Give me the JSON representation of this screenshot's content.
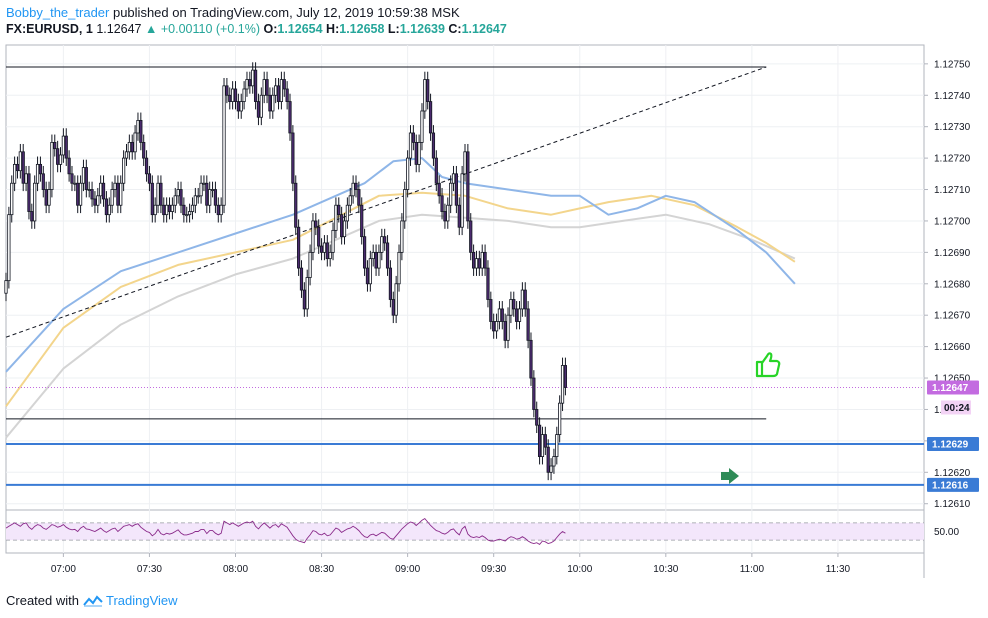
{
  "header": {
    "user": "Bobby_the_trader",
    "published": " published on TradingView.com, July 12, 2019 10:59:38 MSK",
    "symbol": "FX:EURUSD, 1",
    "last": "1.12647",
    "change_arrow": "▲",
    "change": "+0.00110 (+0.1%)",
    "o_label": "O:",
    "o_value": "1.12654",
    "h_label": "H:",
    "h_value": "1.12658",
    "l_label": "L:",
    "l_value": "1.12639",
    "c_label": "C:",
    "c_value": "1.12647"
  },
  "footer": {
    "created_with": "Created with",
    "brand": "TradingView",
    "brand_icon": "tradingview-logo-icon"
  },
  "colors": {
    "sma_blue": "#8fb6e8",
    "sma_yellow": "#f3d58c",
    "sma_gray": "#d4d4d4",
    "level_blue": "#3a7bd5",
    "price_line": "#c36be0",
    "rsi_line": "#8a2a8a",
    "rsi_fill": "#f3e6fb",
    "thumb": "#27d427",
    "arrow": "#2e8b57"
  },
  "chart_data": {
    "type": "candlestick",
    "interval": "1 minute",
    "y_range": [
      1.12608,
      1.12756
    ],
    "y_ticks": [
      "1.12750",
      "1.12740",
      "1.12730",
      "1.12720",
      "1.12710",
      "1.12700",
      "1.12690",
      "1.12680",
      "1.12670",
      "1.12660",
      "1.12650",
      "1.12640",
      "1.12630",
      "1.12620",
      "1.12610"
    ],
    "x_ticks": [
      "07:00",
      "07:30",
      "08:00",
      "08:30",
      "09:00",
      "09:30",
      "10:00",
      "10:30",
      "11:00",
      "11:30"
    ],
    "x_range_minutes": [
      400,
      720
    ],
    "price_tags": {
      "current": "1.12647",
      "countdown": "00:24",
      "level_1": "1.12629",
      "level_2": "1.12616"
    },
    "levels": [
      1.12629,
      1.12616
    ],
    "horizontal_lines": [
      1.12749,
      1.12637
    ],
    "trend_line": {
      "start": [
        400,
        1.12663
      ],
      "end": [
        665,
        1.12749
      ]
    },
    "closes": [
      1.12681,
      1.12702,
      1.12712,
      1.12718,
      1.12716,
      1.12722,
      1.12712,
      1.12715,
      1.12703,
      1.127,
      1.12712,
      1.12718,
      1.12715,
      1.1271,
      1.12705,
      1.1271,
      1.12725,
      1.12723,
      1.12718,
      1.12721,
      1.12727,
      1.1272,
      1.12715,
      1.12712,
      1.12712,
      1.12705,
      1.12712,
      1.12717,
      1.1271,
      1.1271,
      1.12707,
      1.12705,
      1.12708,
      1.12712,
      1.12707,
      1.12702,
      1.12705,
      1.1271,
      1.12712,
      1.12705,
      1.12712,
      1.1272,
      1.12722,
      1.12725,
      1.12722,
      1.12728,
      1.12732,
      1.12725,
      1.1272,
      1.12715,
      1.12712,
      1.12702,
      1.12705,
      1.12712,
      1.12705,
      1.12702,
      1.12705,
      1.12703,
      1.12705,
      1.12708,
      1.1271,
      1.12705,
      1.12702,
      1.12702,
      1.12703,
      1.12705,
      1.12708,
      1.12708,
      1.12712,
      1.12712,
      1.12705,
      1.1271,
      1.1271,
      1.12705,
      1.12702,
      1.12705,
      1.12743,
      1.1274,
      1.12738,
      1.12742,
      1.12738,
      1.12735,
      1.12738,
      1.12742,
      1.12745,
      1.12743,
      1.12748,
      1.12738,
      1.12733,
      1.1274,
      1.12745,
      1.1274,
      1.12735,
      1.1274,
      1.12743,
      1.12738,
      1.12745,
      1.12742,
      1.12738,
      1.12728,
      1.12712,
      1.12698,
      1.12685,
      1.12678,
      1.12672,
      1.12682,
      1.1269,
      1.127,
      1.12698,
      1.12692,
      1.1269,
      1.12693,
      1.12688,
      1.1269,
      1.12697,
      1.12705,
      1.12702,
      1.12695,
      1.127,
      1.12705,
      1.12708,
      1.12712,
      1.1271,
      1.12705,
      1.12695,
      1.12685,
      1.1268,
      1.12688,
      1.1269,
      1.12685,
      1.1269,
      1.12695,
      1.12693,
      1.12685,
      1.12675,
      1.1267,
      1.1268,
      1.1269,
      1.127,
      1.1271,
      1.1272,
      1.12728,
      1.12725,
      1.12718,
      1.12725,
      1.12735,
      1.12745,
      1.12738,
      1.12728,
      1.1272,
      1.12712,
      1.12708,
      1.12703,
      1.127,
      1.12705,
      1.12712,
      1.12715,
      1.12705,
      1.12698,
      1.12715,
      1.12722,
      1.127,
      1.1269,
      1.12685,
      1.12688,
      1.12685,
      1.1269,
      1.12685,
      1.12675,
      1.12668,
      1.12665,
      1.12668,
      1.12672,
      1.12668,
      1.12662,
      1.1267,
      1.12675,
      1.12672,
      1.12668,
      1.12672,
      1.12678,
      1.12672,
      1.12662,
      1.1265,
      1.1264,
      1.12635,
      1.12625,
      1.12632,
      1.12628,
      1.1262,
      1.12622,
      1.12625,
      1.12632,
      1.12642,
      1.12654,
      1.12647
    ],
    "sma_blue": [
      [
        400,
        1.12652
      ],
      [
        420,
        1.12672
      ],
      [
        440,
        1.12684
      ],
      [
        460,
        1.1269
      ],
      [
        480,
        1.12696
      ],
      [
        500,
        1.12702
      ],
      [
        510,
        1.12706
      ],
      [
        525,
        1.12712
      ],
      [
        535,
        1.12719
      ],
      [
        545,
        1.1272
      ],
      [
        552,
        1.12714
      ],
      [
        560,
        1.12712
      ],
      [
        575,
        1.1271
      ],
      [
        590,
        1.12708
      ],
      [
        600,
        1.12708
      ],
      [
        610,
        1.12702
      ],
      [
        620,
        1.12704
      ],
      [
        630,
        1.12708
      ],
      [
        640,
        1.12706
      ],
      [
        655,
        1.12697
      ],
      [
        665,
        1.1269
      ],
      [
        675,
        1.1268
      ]
    ],
    "sma_yellow": [
      [
        400,
        1.12641
      ],
      [
        420,
        1.12666
      ],
      [
        440,
        1.12679
      ],
      [
        460,
        1.12686
      ],
      [
        480,
        1.1269
      ],
      [
        500,
        1.12694
      ],
      [
        515,
        1.12701
      ],
      [
        530,
        1.12708
      ],
      [
        545,
        1.12709
      ],
      [
        560,
        1.12708
      ],
      [
        575,
        1.12704
      ],
      [
        590,
        1.12702
      ],
      [
        600,
        1.12704
      ],
      [
        610,
        1.12706
      ],
      [
        625,
        1.12708
      ],
      [
        640,
        1.12705
      ],
      [
        655,
        1.12698
      ],
      [
        665,
        1.12693
      ],
      [
        675,
        1.12687
      ]
    ],
    "sma_gray": [
      [
        400,
        1.12631
      ],
      [
        420,
        1.12653
      ],
      [
        440,
        1.12667
      ],
      [
        460,
        1.12676
      ],
      [
        480,
        1.12683
      ],
      [
        500,
        1.12688
      ],
      [
        515,
        1.12694
      ],
      [
        530,
        1.127
      ],
      [
        545,
        1.12702
      ],
      [
        560,
        1.12701
      ],
      [
        575,
        1.127
      ],
      [
        590,
        1.12698
      ],
      [
        600,
        1.12698
      ],
      [
        615,
        1.127
      ],
      [
        630,
        1.12702
      ],
      [
        645,
        1.12699
      ],
      [
        660,
        1.12694
      ],
      [
        675,
        1.12688
      ]
    ],
    "rsi": {
      "tick_label": "50.00",
      "y_range": [
        0,
        100
      ],
      "band": [
        30,
        70
      ],
      "values": [
        58,
        62,
        66,
        70,
        66,
        62,
        68,
        70,
        60,
        55,
        62,
        66,
        64,
        58,
        55,
        60,
        66,
        64,
        60,
        62,
        66,
        60,
        56,
        54,
        55,
        50,
        58,
        62,
        56,
        55,
        52,
        50,
        54,
        58,
        52,
        48,
        52,
        56,
        58,
        50,
        56,
        62,
        64,
        66,
        62,
        66,
        68,
        60,
        55,
        50,
        48,
        40,
        45,
        55,
        45,
        42,
        46,
        44,
        46,
        50,
        54,
        46,
        42,
        42,
        44,
        46,
        50,
        50,
        55,
        55,
        45,
        52,
        52,
        46,
        42,
        46,
        74,
        70,
        66,
        70,
        66,
        62,
        66,
        70,
        72,
        70,
        74,
        62,
        56,
        64,
        70,
        64,
        58,
        64,
        66,
        60,
        68,
        64,
        60,
        50,
        40,
        32,
        28,
        26,
        24,
        34,
        42,
        52,
        50,
        44,
        42,
        46,
        40,
        42,
        50,
        58,
        55,
        48,
        52,
        56,
        58,
        62,
        58,
        52,
        44,
        38,
        36,
        42,
        44,
        40,
        44,
        48,
        46,
        40,
        34,
        32,
        40,
        48,
        56,
        62,
        68,
        72,
        70,
        64,
        70,
        76,
        80,
        72,
        64,
        58,
        52,
        50,
        46,
        44,
        48,
        54,
        56,
        48,
        42,
        56,
        62,
        44,
        38,
        36,
        38,
        36,
        40,
        36,
        30,
        28,
        28,
        30,
        32,
        30,
        28,
        34,
        38,
        36,
        32,
        34,
        38,
        34,
        28,
        24,
        22,
        24,
        20,
        28,
        26,
        22,
        24,
        28,
        36,
        44,
        50,
        46
      ]
    },
    "annotations": [
      "thumbs-up-icon",
      "green-arrow-marker"
    ]
  }
}
